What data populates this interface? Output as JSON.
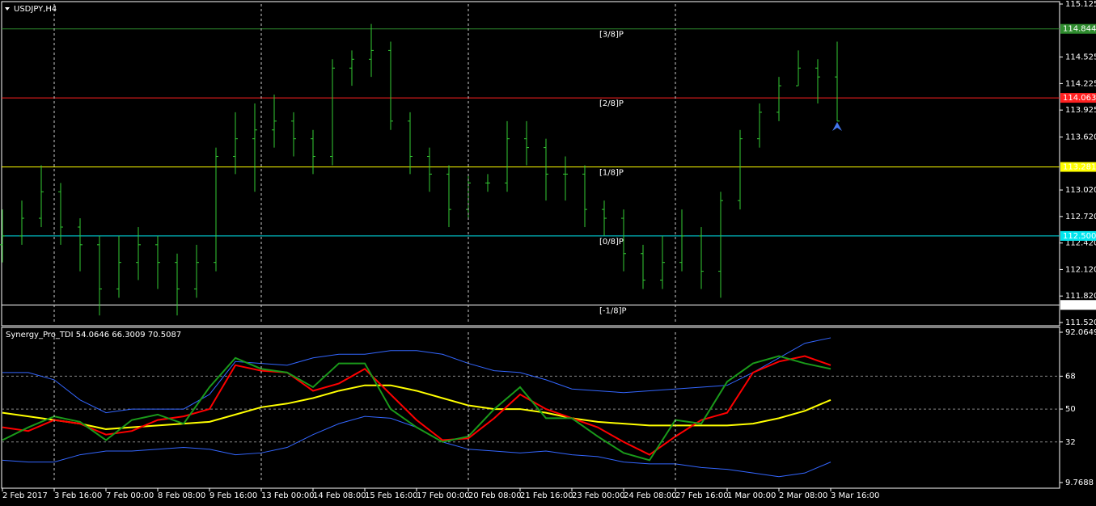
{
  "chart_data": [
    {
      "type": "ohlc",
      "title": "USDJPY,H4",
      "color": "#33cc33",
      "x": [
        0,
        3,
        6,
        9,
        12,
        15,
        18,
        21,
        24,
        27,
        30,
        33,
        36,
        39,
        42,
        45,
        48,
        51,
        54,
        57,
        60,
        63,
        66,
        69,
        72,
        75,
        78,
        81,
        84,
        87,
        90,
        93,
        96,
        99,
        102,
        105,
        108,
        111,
        114,
        117,
        120,
        123,
        126,
        129
      ],
      "open": [
        112.4,
        112.5,
        112.7,
        113.0,
        112.6,
        112.4,
        111.9,
        112.2,
        112.4,
        112.2,
        111.9,
        112.2,
        113.4,
        113.6,
        113.7,
        113.8,
        113.6,
        113.4,
        114.4,
        114.5,
        114.6,
        113.8,
        113.4,
        113.2,
        112.8,
        113.1,
        113.1,
        113.6,
        113.5,
        113.2,
        113.2,
        112.8,
        112.7,
        112.3,
        112.0,
        112.2,
        112.5,
        112.1,
        112.9,
        113.6,
        113.9,
        114.2,
        114.4,
        114.3
      ],
      "high": [
        112.8,
        112.9,
        113.3,
        113.1,
        112.7,
        112.5,
        112.5,
        112.6,
        112.5,
        112.3,
        112.4,
        113.5,
        113.9,
        114.0,
        114.1,
        113.9,
        113.7,
        114.5,
        114.6,
        114.9,
        114.7,
        113.9,
        113.5,
        113.3,
        113.2,
        113.2,
        113.8,
        113.8,
        113.6,
        113.4,
        113.3,
        112.9,
        112.8,
        112.4,
        112.5,
        112.8,
        112.6,
        113.0,
        113.7,
        114.0,
        114.3,
        114.6,
        114.5,
        114.7
      ],
      "low": [
        112.2,
        112.4,
        112.6,
        112.4,
        112.1,
        111.6,
        111.8,
        112.0,
        111.9,
        111.6,
        111.8,
        112.1,
        113.2,
        113.0,
        113.5,
        113.4,
        113.2,
        113.3,
        114.2,
        114.3,
        113.7,
        113.2,
        113.0,
        112.6,
        112.7,
        113.0,
        113.0,
        113.3,
        112.9,
        112.9,
        112.6,
        112.5,
        112.1,
        111.9,
        111.9,
        112.1,
        111.9,
        111.8,
        112.8,
        113.5,
        113.8,
        114.2,
        114.0,
        113.8
      ],
      "close": [
        112.5,
        112.7,
        113.0,
        112.6,
        112.4,
        111.9,
        112.2,
        112.4,
        112.2,
        111.9,
        112.2,
        113.4,
        113.6,
        113.7,
        113.8,
        113.6,
        113.4,
        114.4,
        114.5,
        114.6,
        113.8,
        113.4,
        113.2,
        112.8,
        113.1,
        113.1,
        113.6,
        113.5,
        113.2,
        113.2,
        112.8,
        112.7,
        112.3,
        112.0,
        112.2,
        112.5,
        112.1,
        112.9,
        113.6,
        113.9,
        114.2,
        114.4,
        114.3,
        113.8
      ],
      "xlim": [
        0,
        163
      ],
      "ylim": [
        111.52,
        115.125
      ],
      "yticks": [
        115.125,
        114.525,
        114.225,
        113.925,
        {
          "value": 113.62,
          "label": "113.620"
        },
        {
          "value": 113.02,
          "label": "113.020"
        },
        {
          "value": 112.72,
          "label": "112.720"
        },
        {
          "value": 112.42,
          "label": "112.420"
        },
        {
          "value": 112.12,
          "label": "112.120"
        },
        {
          "value": 111.82,
          "label": "111.820"
        },
        {
          "value": 111.52,
          "label": "111.520"
        }
      ],
      "levels": [
        {
          "name": "[3/8]P",
          "value": 114.844,
          "value_label": "114.844",
          "color": "#2e8b2e"
        },
        {
          "name": "[2/8]P",
          "value": 114.063,
          "value_label": "114.063",
          "color": "#ff2020"
        },
        {
          "name": "[1/8]P",
          "value": 113.281,
          "value_label": "113.281",
          "color": "#ffff00"
        },
        {
          "name": "[0/8]P",
          "value": 112.5,
          "value_label": "112.500",
          "color": "#00e5ee"
        },
        {
          "name": "[-1/8]P",
          "value": 111.719,
          "value_label": "111.719",
          "color": "#ffffff"
        }
      ]
    },
    {
      "type": "line",
      "title": "Synergy_Pro_TDI 54.0646 66.3009 70.5087",
      "x": [
        0,
        4,
        8,
        12,
        16,
        20,
        24,
        28,
        32,
        36,
        40,
        44,
        48,
        52,
        56,
        60,
        64,
        68,
        72,
        76,
        80,
        84,
        88,
        92,
        96,
        100,
        104,
        108,
        112,
        116,
        120,
        124,
        128
      ],
      "series": [
        {
          "color": "#3366ff",
          "values": [
            70,
            70,
            66,
            55,
            48,
            50,
            50,
            50,
            58,
            76,
            75,
            74,
            78,
            80,
            80,
            82,
            82,
            80,
            75,
            71,
            70,
            66,
            61,
            60,
            59,
            60,
            61,
            62,
            63,
            70,
            78,
            86,
            89
          ]
        },
        {
          "color": "#3366ff",
          "values": [
            22,
            21,
            21,
            25,
            27,
            27,
            28,
            29,
            28,
            25,
            26,
            29,
            36,
            42,
            46,
            45,
            40,
            32,
            28,
            27,
            26,
            27,
            25,
            24,
            21,
            20,
            20,
            18,
            17,
            15,
            13,
            15,
            21
          ]
        },
        {
          "color": "#ffff00",
          "values": [
            48,
            46,
            44,
            42,
            39,
            40,
            41,
            42,
            43,
            47,
            51,
            53,
            56,
            60,
            63,
            63,
            60,
            56,
            52,
            50,
            50,
            48,
            45,
            43,
            42,
            41,
            41,
            41,
            41,
            42,
            45,
            49,
            55
          ]
        },
        {
          "color": "#ff0000",
          "values": [
            40,
            38,
            44,
            42,
            36,
            38,
            44,
            46,
            50,
            74,
            71,
            70,
            60,
            64,
            72,
            58,
            44,
            33,
            34,
            45,
            58,
            50,
            45,
            40,
            32,
            25,
            35,
            44,
            48,
            70,
            76,
            79,
            74
          ]
        },
        {
          "color": "#1a9a1a",
          "values": [
            33,
            40,
            46,
            43,
            33,
            44,
            47,
            42,
            62,
            78,
            72,
            70,
            62,
            75,
            75,
            50,
            40,
            32,
            35,
            50,
            62,
            45,
            45,
            35,
            26,
            22,
            44,
            42,
            65,
            75,
            79,
            75,
            72
          ]
        }
      ],
      "xlim": [
        0,
        163
      ],
      "ylim": [
        9.7688,
        92.0649
      ],
      "yticks": [
        92.0649,
        68,
        50,
        32,
        9.7688
      ],
      "xticks": [
        {
          "value": 0,
          "label": "2 Feb 2017"
        },
        {
          "value": 8,
          "label": "3 Feb 16:00"
        },
        {
          "value": 16,
          "label": "7 Feb 00:00"
        },
        {
          "value": 24,
          "label": "8 Feb 08:00"
        },
        {
          "value": 32,
          "label": "9 Feb 16:00"
        },
        {
          "value": 40,
          "label": "13 Feb 00:00"
        },
        {
          "value": 48,
          "label": "14 Feb 08:00"
        },
        {
          "value": 56,
          "label": "15 Feb 16:00"
        },
        {
          "value": 64,
          "label": "17 Feb 00:00"
        },
        {
          "value": 72,
          "label": "20 Feb 08:00"
        },
        {
          "value": 80,
          "label": "21 Feb 16:00"
        },
        {
          "value": 88,
          "label": "23 Feb 00:00"
        },
        {
          "value": 96,
          "label": "24 Feb 08:00"
        },
        {
          "value": 104,
          "label": "27 Feb 16:00"
        },
        {
          "value": 112,
          "label": "1 Mar 00:00"
        },
        {
          "value": 120,
          "label": "2 Mar 08:00"
        },
        {
          "value": 128,
          "label": "3 Mar 16:00"
        }
      ]
    }
  ]
}
